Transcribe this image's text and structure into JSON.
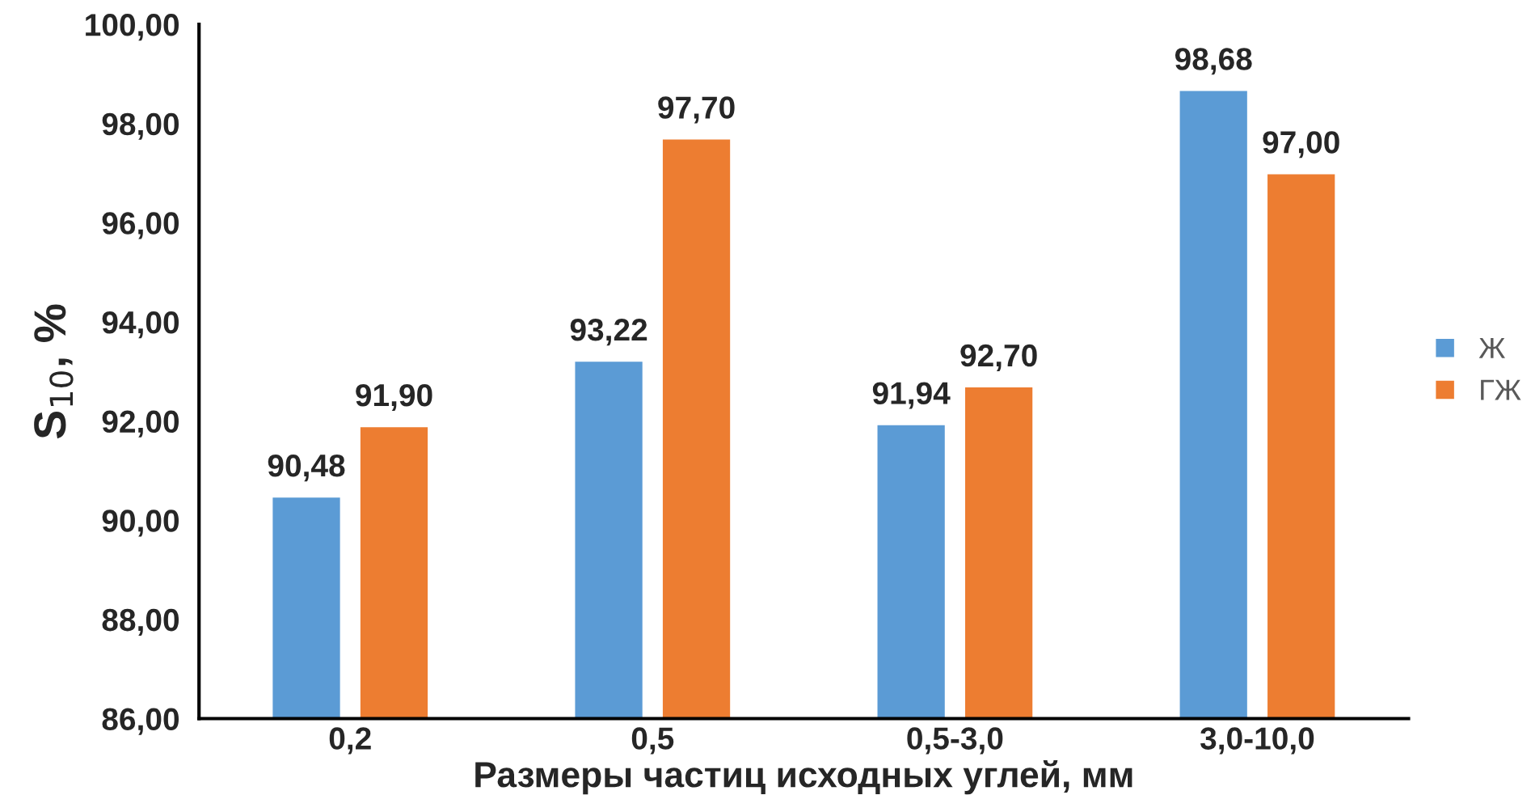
{
  "chart_data": {
    "type": "bar",
    "xlabel": "Размеры частиц исходных углей, мм",
    "ylabel": "S$_{10}$, %",
    "categories": [
      "0,2",
      "0,5",
      "0,5-3,0",
      "3,0-10,0"
    ],
    "series": [
      {
        "name": "Ж",
        "color": "#5b9bd5",
        "values": [
          90.48,
          93.22,
          91.94,
          98.68
        ],
        "value_labels": [
          "90,48",
          "93,22",
          "91,94",
          "98,68"
        ]
      },
      {
        "name": "ГЖ",
        "color": "#ed7d31",
        "values": [
          91.9,
          97.7,
          92.7,
          97.0
        ],
        "value_labels": [
          "91,90",
          "97,70",
          "92,70",
          "97,00"
        ]
      }
    ],
    "ylim": [
      86,
      100
    ],
    "yticks": [
      {
        "value": 86,
        "label": "86,00"
      },
      {
        "value": 88,
        "label": "88,00"
      },
      {
        "value": 90,
        "label": "90,00"
      },
      {
        "value": 92,
        "label": "92,00"
      },
      {
        "value": 94,
        "label": "94,00"
      },
      {
        "value": 96,
        "label": "96,00"
      },
      {
        "value": 98,
        "label": "98,00"
      },
      {
        "value": 100,
        "label": "100,00"
      }
    ],
    "grid": false,
    "legend": "right"
  }
}
